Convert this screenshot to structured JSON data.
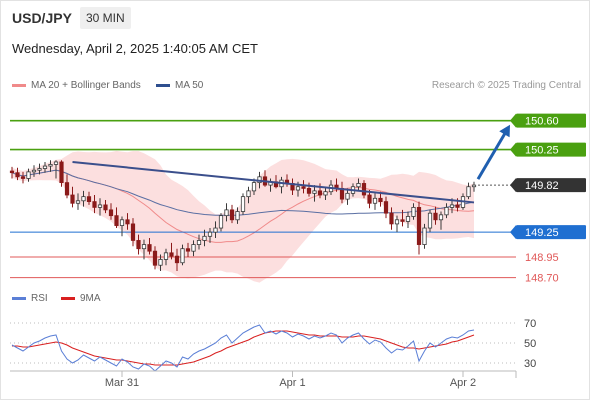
{
  "header": {
    "symbol": "USD/JPY",
    "timeframe": "30 MIN",
    "datetime": "Wednesday, April 2, 2025 1:40:05 AM CET",
    "credit": "Research © 2025 Trading Central"
  },
  "legend_main": [
    {
      "label": "MA 20 + Bollinger Bands",
      "color": "#f08a8a"
    },
    {
      "label": "MA 50",
      "color": "#2e4f8f"
    }
  ],
  "legend_rsi": [
    {
      "label": "RSI",
      "color": "#5b7fd6"
    },
    {
      "label": "9MA",
      "color": "#d92020"
    }
  ],
  "x_labels": [
    "Mar 31",
    "Apr 1",
    "Apr 2"
  ],
  "rsi_ticks": [
    "70",
    "50",
    "30"
  ],
  "colors": {
    "resistance": "#4aa010",
    "pivot": "#1f6fd1",
    "support": "#e05858",
    "last": "#333333",
    "trend": "#3b4f8c",
    "band": "#fbd4d4"
  },
  "chart_data": [
    {
      "type": "candlestick",
      "title": "USD/JPY 30 MIN",
      "x_labels": [
        "Mar 31",
        "Apr 1",
        "Apr 2"
      ],
      "ylim": [
        148.55,
        150.85
      ],
      "last_price": 149.82,
      "candles": [
        [
          149.99,
          150.04,
          149.9,
          149.97
        ],
        [
          149.97,
          150.03,
          149.88,
          149.92
        ],
        [
          149.92,
          149.98,
          149.84,
          149.9
        ],
        [
          149.9,
          150.02,
          149.86,
          149.98
        ],
        [
          149.98,
          150.06,
          149.92,
          150.0
        ],
        [
          150.0,
          150.08,
          149.95,
          150.02
        ],
        [
          150.02,
          150.1,
          149.97,
          150.05
        ],
        [
          150.05,
          150.12,
          149.98,
          150.07
        ],
        [
          150.07,
          150.12,
          149.9,
          150.1
        ],
        [
          150.1,
          150.12,
          149.8,
          149.85
        ],
        [
          149.85,
          149.95,
          149.66,
          149.7
        ],
        [
          149.7,
          149.8,
          149.55,
          149.6
        ],
        [
          149.6,
          149.72,
          149.52,
          149.63
        ],
        [
          149.63,
          149.75,
          149.56,
          149.68
        ],
        [
          149.68,
          149.74,
          149.58,
          149.62
        ],
        [
          149.62,
          149.7,
          149.48,
          149.55
        ],
        [
          149.55,
          149.66,
          149.45,
          149.58
        ],
        [
          149.58,
          149.64,
          149.48,
          149.52
        ],
        [
          149.52,
          149.6,
          149.4,
          149.45
        ],
        [
          149.45,
          149.55,
          149.3,
          149.33
        ],
        [
          149.33,
          149.44,
          149.2,
          149.4
        ],
        [
          149.4,
          149.48,
          149.28,
          149.35
        ],
        [
          149.35,
          149.42,
          149.08,
          149.15
        ],
        [
          149.15,
          149.22,
          148.98,
          149.05
        ],
        [
          149.05,
          149.16,
          148.92,
          149.1
        ],
        [
          149.1,
          149.18,
          148.98,
          149.02
        ],
        [
          149.02,
          149.08,
          148.8,
          148.85
        ],
        [
          148.85,
          148.98,
          148.78,
          148.92
        ],
        [
          148.92,
          149.05,
          148.85,
          149.0
        ],
        [
          149.0,
          149.12,
          148.92,
          148.96
        ],
        [
          148.96,
          149.05,
          148.78,
          148.88
        ],
        [
          148.88,
          149.1,
          148.85,
          149.05
        ],
        [
          149.05,
          149.12,
          148.95,
          149.02
        ],
        [
          149.02,
          149.15,
          148.96,
          149.1
        ],
        [
          149.1,
          149.22,
          149.04,
          149.15
        ],
        [
          149.15,
          149.28,
          149.08,
          149.2
        ],
        [
          149.2,
          149.3,
          149.12,
          149.25
        ],
        [
          149.25,
          149.38,
          149.18,
          149.3
        ],
        [
          149.3,
          149.48,
          149.26,
          149.45
        ],
        [
          149.45,
          149.6,
          149.38,
          149.52
        ],
        [
          149.52,
          149.58,
          149.36,
          149.4
        ],
        [
          149.4,
          149.55,
          149.35,
          149.5
        ],
        [
          149.5,
          149.72,
          149.46,
          149.68
        ],
        [
          149.68,
          149.8,
          149.6,
          149.75
        ],
        [
          149.75,
          149.9,
          149.7,
          149.85
        ],
        [
          149.85,
          149.98,
          149.78,
          149.92
        ],
        [
          149.92,
          150.0,
          149.8,
          149.82
        ],
        [
          149.82,
          149.9,
          149.74,
          149.86
        ],
        [
          149.86,
          149.94,
          149.78,
          149.8
        ],
        [
          149.8,
          149.92,
          149.72,
          149.88
        ],
        [
          149.88,
          149.95,
          149.8,
          149.84
        ],
        [
          149.84,
          149.9,
          149.7,
          149.76
        ],
        [
          149.76,
          149.86,
          149.68,
          149.8
        ],
        [
          149.8,
          149.88,
          149.72,
          149.78
        ],
        [
          149.78,
          149.85,
          149.68,
          149.72
        ],
        [
          149.72,
          149.82,
          149.62,
          149.75
        ],
        [
          149.75,
          149.84,
          149.66,
          149.7
        ],
        [
          149.7,
          149.8,
          149.64,
          149.74
        ],
        [
          149.74,
          149.88,
          149.7,
          149.82
        ],
        [
          149.82,
          149.9,
          149.74,
          149.78
        ],
        [
          149.78,
          149.86,
          149.6,
          149.65
        ],
        [
          149.65,
          149.78,
          149.58,
          149.72
        ],
        [
          149.72,
          149.84,
          149.68,
          149.8
        ],
        [
          149.8,
          149.9,
          149.75,
          149.84
        ],
        [
          149.84,
          149.88,
          149.66,
          149.7
        ],
        [
          149.7,
          149.76,
          149.54,
          149.6
        ],
        [
          149.6,
          149.72,
          149.52,
          149.66
        ],
        [
          149.66,
          149.74,
          149.56,
          149.62
        ],
        [
          149.62,
          149.68,
          149.42,
          149.48
        ],
        [
          149.48,
          149.55,
          149.28,
          149.35
        ],
        [
          149.35,
          149.45,
          149.25,
          149.4
        ],
        [
          149.4,
          149.52,
          149.32,
          149.38
        ],
        [
          149.38,
          149.5,
          149.3,
          149.44
        ],
        [
          149.44,
          149.6,
          149.4,
          149.55
        ],
        [
          149.55,
          149.62,
          148.98,
          149.1
        ],
        [
          149.1,
          149.35,
          149.05,
          149.3
        ],
        [
          149.3,
          149.52,
          149.25,
          149.48
        ],
        [
          149.48,
          149.56,
          149.34,
          149.4
        ],
        [
          149.4,
          149.5,
          149.28,
          149.46
        ],
        [
          149.46,
          149.6,
          149.42,
          149.55
        ],
        [
          149.55,
          149.66,
          149.48,
          149.58
        ],
        [
          149.58,
          149.66,
          149.5,
          149.55
        ],
        [
          149.55,
          149.72,
          149.52,
          149.68
        ],
        [
          149.68,
          149.85,
          149.65,
          149.8
        ],
        [
          149.8,
          149.86,
          149.74,
          149.82
        ]
      ],
      "levels": [
        {
          "label": "150.60",
          "value": 150.6,
          "kind": "resistance"
        },
        {
          "label": "150.25",
          "value": 150.25,
          "kind": "resistance"
        },
        {
          "label": "149.82",
          "value": 149.82,
          "kind": "last"
        },
        {
          "label": "149.25",
          "value": 149.25,
          "kind": "pivot"
        },
        {
          "label": "148.95",
          "value": 148.95,
          "kind": "support"
        },
        {
          "label": "148.70",
          "value": 148.7,
          "kind": "support"
        }
      ],
      "trendline": {
        "from": [
          11,
          150.1
        ],
        "to": [
          84,
          149.61
        ]
      },
      "arrow": {
        "from": [
          84,
          149.82
        ],
        "to": [
          90,
          150.55
        ]
      },
      "indicators": [
        "MA 20 + Bollinger Bands",
        "MA 50"
      ]
    },
    {
      "type": "line",
      "title": "RSI",
      "ylim": [
        20,
        80
      ],
      "yticks": [
        70,
        50,
        30
      ],
      "series": [
        {
          "name": "RSI",
          "values": [
            48,
            45,
            42,
            46,
            50,
            52,
            55,
            57,
            58,
            42,
            34,
            30,
            33,
            38,
            35,
            32,
            36,
            33,
            30,
            27,
            34,
            31,
            26,
            24,
            29,
            27,
            22,
            27,
            32,
            30,
            26,
            36,
            34,
            39,
            42,
            44,
            47,
            50,
            55,
            58,
            50,
            55,
            60,
            63,
            66,
            68,
            60,
            62,
            59,
            62,
            60,
            56,
            59,
            57,
            54,
            57,
            55,
            57,
            60,
            58,
            50,
            55,
            58,
            60,
            54,
            49,
            53,
            51,
            45,
            40,
            44,
            43,
            47,
            52,
            32,
            42,
            50,
            46,
            50,
            54,
            56,
            55,
            58,
            62,
            63
          ]
        },
        {
          "name": "9MA",
          "values": [
            47,
            47,
            46,
            46,
            47,
            48,
            49,
            50,
            51,
            50,
            48,
            45,
            43,
            41,
            39,
            37,
            36,
            35,
            34,
            33,
            33,
            32,
            31,
            30,
            29,
            29,
            28,
            28,
            28,
            28,
            28,
            29,
            30,
            31,
            33,
            35,
            37,
            40,
            42,
            45,
            47,
            49,
            51,
            53,
            56,
            58,
            60,
            61,
            62,
            62,
            62,
            61,
            60,
            59,
            58,
            58,
            57,
            57,
            57,
            57,
            56,
            56,
            56,
            57,
            57,
            56,
            55,
            54,
            52,
            50,
            48,
            46,
            45,
            45,
            44,
            45,
            46,
            47,
            48,
            49,
            51,
            52,
            54,
            56,
            58
          ]
        }
      ]
    }
  ]
}
